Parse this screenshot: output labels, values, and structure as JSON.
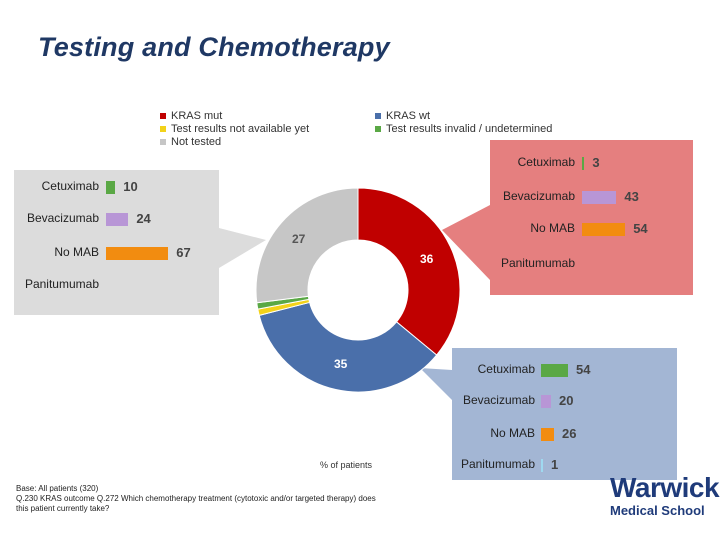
{
  "slide": {
    "title": "Testing and Chemotherapy",
    "xlabel": "% of patients",
    "footnote_lines": [
      "Base: All patients (320)",
      "Q.230 KRAS outcome Q.272 Which chemotherapy treatment (cytotoxic and/or targeted therapy) does",
      "this patient currently take?"
    ]
  },
  "logo": {
    "main": "Warwick",
    "sub": "Medical School"
  },
  "colors": {
    "kras_mut": "#c00000",
    "kras_wt": "#4a6faa",
    "not_available": "#f2d21a",
    "invalid": "#5aa845",
    "not_tested": "#c6c6c6",
    "cetuximab": "#5aa845",
    "bevacizumab": "#b896d6",
    "no_mab": "#f28c10",
    "panitumumab": "#9fd9f0",
    "panel_mut": "#e57f7f",
    "panel_wt": "#a3b6d4",
    "panel_not_tested": "#dcdcdc"
  },
  "chart_data": [
    {
      "type": "pie",
      "variant": "donut",
      "slices": [
        {
          "label": "KRAS mut",
          "value": 36,
          "key": "kras_mut"
        },
        {
          "label": "KRAS wt",
          "value": 35,
          "key": "kras_wt"
        },
        {
          "label": "Test results not available yet",
          "value": 1,
          "key": "not_available"
        },
        {
          "label": "Test results invalid / undetermined",
          "value": 1,
          "key": "invalid"
        },
        {
          "label": "Not tested",
          "value": 27,
          "key": "not_tested"
        }
      ],
      "legend": [
        {
          "label": "KRAS mut",
          "key": "kras_mut"
        },
        {
          "label": "KRAS wt",
          "key": "kras_wt"
        },
        {
          "label": "Test results not available yet",
          "key": "not_available"
        },
        {
          "label": "Test results invalid / undetermined",
          "key": "invalid"
        },
        {
          "label": "Not tested",
          "key": "not_tested"
        }
      ],
      "legend_placement": "top"
    },
    {
      "type": "bar",
      "group": "KRAS mut",
      "categories": [
        "Cetuximab",
        "Bevacizumab",
        "No MAB",
        "Panitumumab"
      ],
      "values": [
        3,
        43,
        54,
        0
      ],
      "value_labels": [
        "3",
        "43",
        "54",
        ""
      ],
      "xlim": [
        0,
        70
      ]
    },
    {
      "type": "bar",
      "group": "KRAS wt",
      "categories": [
        "Cetuximab",
        "Bevacizumab",
        "No MAB",
        "Panitumumab"
      ],
      "values": [
        54,
        20,
        26,
        1
      ],
      "value_labels": [
        "54",
        "20",
        "26",
        "1"
      ],
      "xlim": [
        0,
        70
      ]
    },
    {
      "type": "bar",
      "group": "Not tested",
      "categories": [
        "Cetuximab",
        "Bevacizumab",
        "No MAB",
        "Panitumumab"
      ],
      "values": [
        10,
        24,
        67,
        0
      ],
      "value_labels": [
        "10",
        "24",
        "67",
        ""
      ],
      "xlim": [
        0,
        70
      ]
    }
  ]
}
